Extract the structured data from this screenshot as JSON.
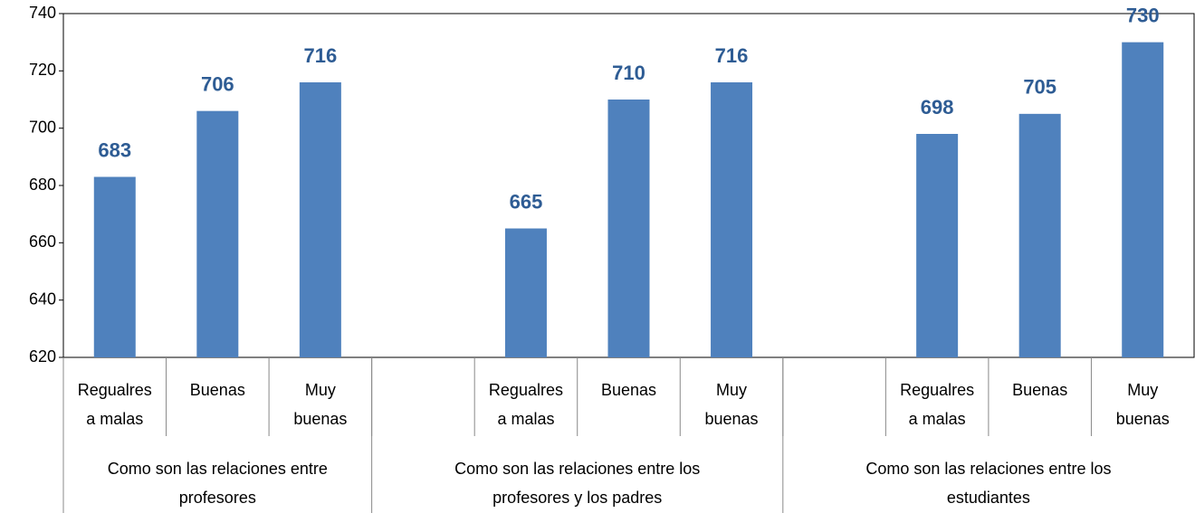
{
  "chart_data": {
    "type": "bar",
    "color": "#4f81bd",
    "ylim": [
      620,
      740
    ],
    "yticks": [
      620,
      640,
      660,
      680,
      700,
      720,
      740
    ],
    "groups": [
      {
        "name": "Como son las relaciones entre profesores",
        "categories": [
          "Regualres a malas",
          "Buenas",
          "Muy buenas"
        ],
        "values": [
          683,
          706,
          716
        ]
      },
      {
        "name": "Como son las relaciones entre los profesores y los padres",
        "categories": [
          "Regualres a malas",
          "Buenas",
          "Muy buenas"
        ],
        "values": [
          665,
          710,
          716
        ]
      },
      {
        "name": "Como son las relaciones entre los estudiantes",
        "categories": [
          "Regualres a malas",
          "Buenas",
          "Muy buenas"
        ],
        "values": [
          698,
          705,
          730
        ]
      }
    ]
  }
}
